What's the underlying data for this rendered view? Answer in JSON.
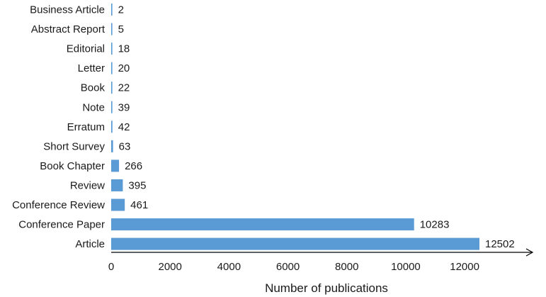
{
  "chart_data": {
    "type": "bar",
    "orientation": "horizontal",
    "categories": [
      "Business Article",
      "Abstract Report",
      "Editorial",
      "Letter",
      "Book",
      "Note",
      "Erratum",
      "Short Survey",
      "Book Chapter",
      "Review",
      "Conference Review",
      "Conference Paper",
      "Article"
    ],
    "values": [
      2,
      5,
      18,
      20,
      22,
      39,
      42,
      63,
      266,
      395,
      461,
      10283,
      12502
    ],
    "value_labels": [
      "2",
      "5",
      "18",
      "20",
      "22",
      "39",
      "42",
      "63",
      "266",
      "395",
      "461",
      "10283",
      "12502"
    ],
    "xlabel": "Number of publications",
    "ylabel": "",
    "title": "",
    "xlim": [
      0,
      14000
    ],
    "xticks": [
      0,
      2000,
      4000,
      6000,
      8000,
      10000,
      12000
    ],
    "xtick_labels": [
      "0",
      "2000",
      "4000",
      "6000",
      "8000",
      "10000",
      "12000"
    ],
    "grid": false,
    "legend": "none",
    "bar_color": "#5b9bd5",
    "axis_color": "#000000"
  }
}
